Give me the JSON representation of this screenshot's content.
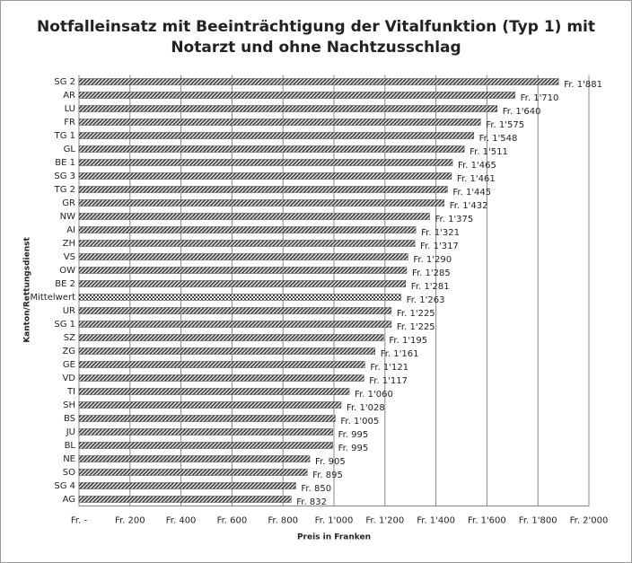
{
  "chart_data": {
    "type": "barh",
    "title": [
      "Notfalleinsatz mit Beeinträchtigung der Vitalfunktion (Typ 1) mit",
      "Notarzt und ohne Nachtzusschlag"
    ],
    "x_label": "Preis in Franken",
    "y_label": "Kanton/Rettungsdienst",
    "categories": [
      "SG 2",
      "AR",
      "LU",
      "FR",
      "TG 1",
      "GL",
      "BE 1",
      "SG 3",
      "TG 2",
      "GR",
      "NW",
      "AI",
      "ZH",
      "VS",
      "OW",
      "BE 2",
      "Mittelwert",
      "UR",
      "SG 1",
      "SZ",
      "ZG",
      "GE",
      "VD",
      "TI",
      "SH",
      "BS",
      "JU",
      "BL",
      "NE",
      "SO",
      "SG 4",
      "AG"
    ],
    "values": [
      1881,
      1710,
      1640,
      1575,
      1548,
      1511,
      1465,
      1461,
      1445,
      1432,
      1375,
      1321,
      1317,
      1290,
      1285,
      1281,
      1263,
      1225,
      1225,
      1195,
      1161,
      1121,
      1117,
      1060,
      1028,
      1005,
      995,
      995,
      905,
      895,
      850,
      832
    ],
    "value_labels": [
      "Fr. 1'881",
      "Fr. 1'710",
      "Fr. 1'640",
      "Fr. 1'575",
      "Fr. 1'548",
      "Fr. 1'511",
      "Fr. 1'465",
      "Fr. 1'461",
      "Fr. 1'445",
      "Fr. 1'432",
      "Fr. 1'375",
      "Fr. 1'321",
      "Fr. 1'317",
      "Fr. 1'290",
      "Fr. 1'285",
      "Fr. 1'281",
      "Fr. 1'263",
      "Fr. 1'225",
      "Fr. 1'225",
      "Fr. 1'195",
      "Fr. 1'161",
      "Fr. 1'121",
      "Fr. 1'117",
      "Fr. 1'060",
      "Fr. 1'028",
      "Fr. 1'005",
      "Fr. 995",
      "Fr. 995",
      "Fr. 905",
      "Fr. 895",
      "Fr. 850",
      "Fr. 832"
    ],
    "patterns": [
      "hatch",
      "hatch",
      "hatch",
      "hatch",
      "hatch",
      "hatch",
      "hatch",
      "hatch",
      "hatch",
      "hatch",
      "hatch",
      "hatch",
      "hatch",
      "hatch",
      "hatch",
      "hatch",
      "checker",
      "hatch",
      "hatch",
      "hatch",
      "hatch",
      "hatch",
      "hatch",
      "hatch",
      "hatch",
      "hatch",
      "hatch",
      "hatch",
      "hatch",
      "hatch",
      "hatch",
      "hatch"
    ],
    "color": "#444444",
    "xlim": [
      0,
      2000
    ],
    "xticks": [
      {
        "value": 0,
        "label": "Fr. -"
      },
      {
        "value": 200,
        "label": "Fr. 200"
      },
      {
        "value": 400,
        "label": "Fr. 400"
      },
      {
        "value": 600,
        "label": "Fr. 600"
      },
      {
        "value": 800,
        "label": "Fr. 800"
      },
      {
        "value": 1000,
        "label": "Fr. 1'000"
      },
      {
        "value": 1200,
        "label": "Fr. 1'200"
      },
      {
        "value": 1400,
        "label": "Fr. 1'400"
      },
      {
        "value": 1600,
        "label": "Fr. 1'600"
      },
      {
        "value": 1800,
        "label": "Fr. 1'800"
      },
      {
        "value": 2000,
        "label": "Fr. 2'000"
      }
    ],
    "grid": true
  }
}
